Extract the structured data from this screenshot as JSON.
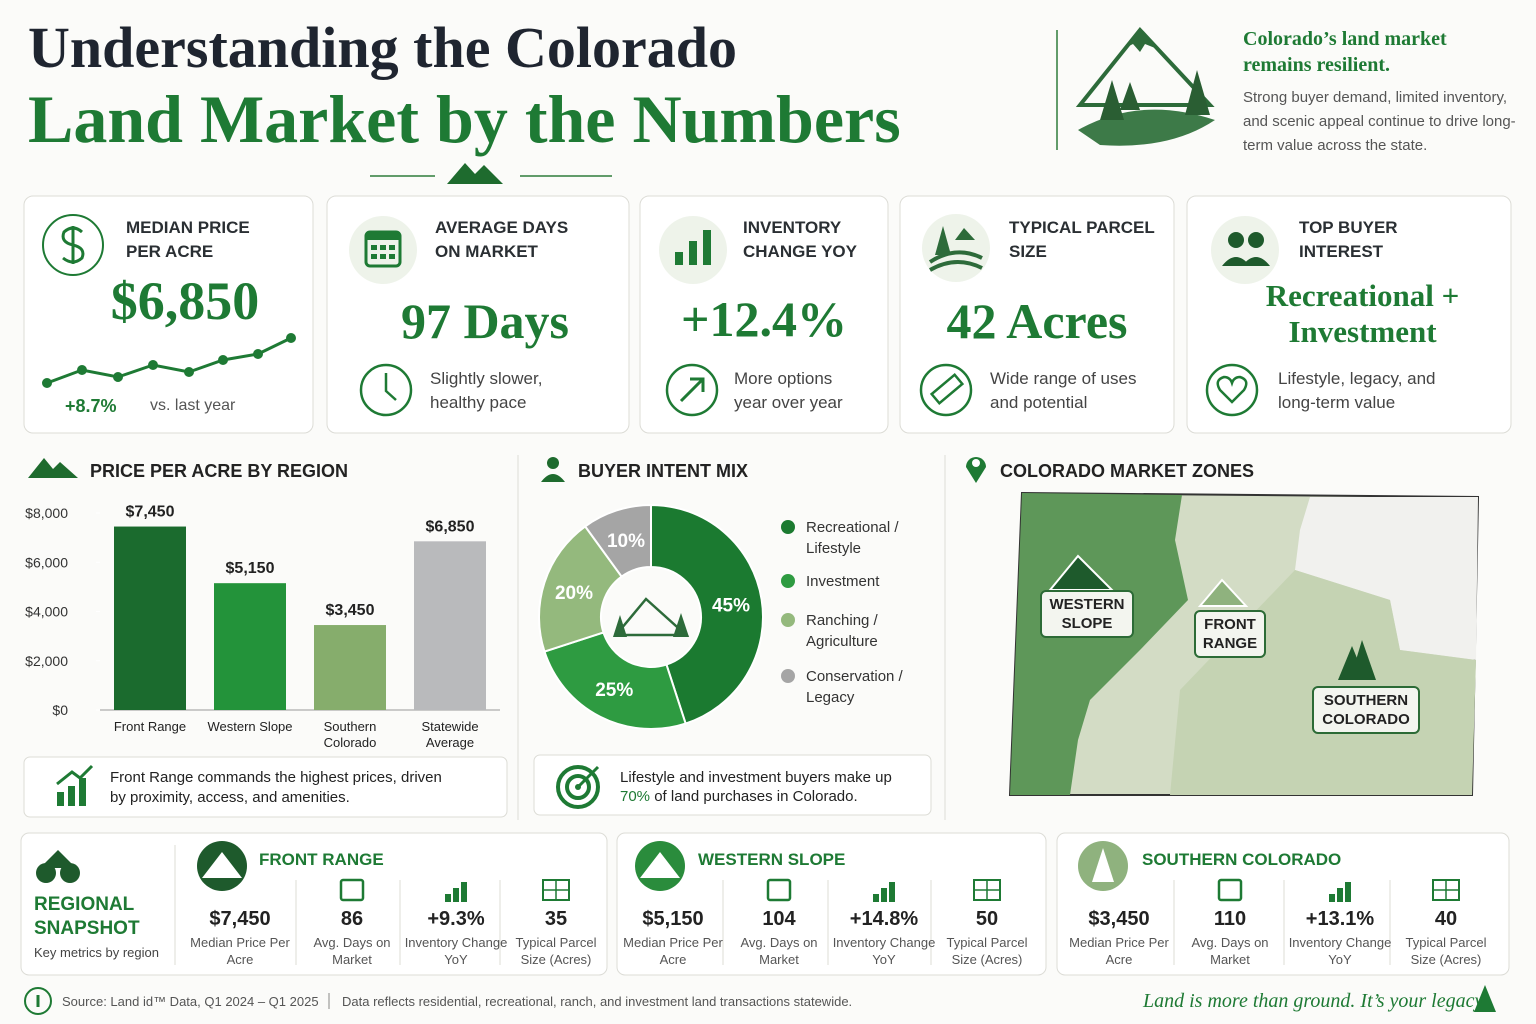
{
  "header": {
    "title_line1": "Understanding the Colorado",
    "title_line2": "Land Market by the Numbers",
    "tagline": "Colorado’s land market remains resilient.",
    "description": "Strong buyer demand, limited inventory, and scenic appeal continue to drive long-term value across the state."
  },
  "kpis": [
    {
      "label": "MEDIAN PRICE PER ACRE",
      "value": "$6,850",
      "change": "+8.7%",
      "note": "vs. last year"
    },
    {
      "label": "AVERAGE DAYS ON MARKET",
      "value": "97 Days",
      "note": "Slightly slower, healthy pace"
    },
    {
      "label": "INVENTORY CHANGE YOY",
      "value": "+12.4%",
      "note": "More options year over year"
    },
    {
      "label": "TYPICAL PARCEL SIZE",
      "value": "42 Acres",
      "note": "Wide range of uses and potential"
    },
    {
      "label": "TOP BUYER INTEREST",
      "value": "Recreational + Investment",
      "note": "Lifestyle, legacy, and long-term value"
    }
  ],
  "chart_data": [
    {
      "type": "bar",
      "title": "PRICE PER ACRE BY REGION",
      "categories": [
        "Front Range",
        "Western Slope",
        "Southern Colorado",
        "Statewide Average"
      ],
      "values": [
        7450,
        5150,
        3450,
        6850
      ],
      "value_labels": [
        "$7,450",
        "$5,150",
        "$3,450",
        "$6,850"
      ],
      "colors": [
        "#1b6b2e",
        "#23933a",
        "#86ad6c",
        "#b9babc"
      ],
      "ylim": [
        0,
        8000
      ],
      "yticks": [
        {
          "value": 0,
          "label": "$0"
        },
        {
          "value": 2000,
          "label": "$2,000"
        },
        {
          "value": 4000,
          "label": "$4,000"
        },
        {
          "value": 6000,
          "label": "$6,000"
        },
        {
          "value": 8000,
          "label": "$8,000"
        }
      ],
      "note": "Front Range commands the highest prices, driven by proximity, access, and amenities."
    },
    {
      "type": "pie",
      "title": "BUYER INTENT MIX",
      "categories": [
        "Recreational / Lifestyle",
        "Investment",
        "Ranching / Agriculture",
        "Conservation / Legacy"
      ],
      "values": [
        45,
        25,
        20,
        10
      ],
      "value_labels": [
        "45%",
        "25%",
        "20%",
        "10%"
      ],
      "colors": [
        "#1b7a30",
        "#2e9b41",
        "#94b97d",
        "#a5a5a5"
      ],
      "note_start": "Lifestyle and investment buyers make up",
      "note_highlight": "70%",
      "note_end": "of land purchases in Colorado."
    }
  ],
  "map": {
    "title": "COLORADO MARKET ZONES",
    "zones": [
      "WESTERN SLOPE",
      "FRONT RANGE",
      "SOUTHERN COLORADO"
    ]
  },
  "snapshot": {
    "title": "REGIONAL SNAPSHOT",
    "subtitle": "Key metrics by region",
    "regions": [
      {
        "name": "FRONT RANGE",
        "metrics": [
          {
            "value": "$7,450",
            "label": "Median Price Per Acre"
          },
          {
            "value": "86",
            "label": "Avg. Days on Market"
          },
          {
            "value": "+9.3%",
            "label": "Inventory Change YoY"
          },
          {
            "value": "35",
            "label": "Typical Parcel Size (Acres)"
          }
        ]
      },
      {
        "name": "WESTERN SLOPE",
        "metrics": [
          {
            "value": "$5,150",
            "label": "Median Price Per Acre"
          },
          {
            "value": "104",
            "label": "Avg. Days on Market"
          },
          {
            "value": "+14.8%",
            "label": "Inventory Change YoY"
          },
          {
            "value": "50",
            "label": "Typical Parcel Size (Acres)"
          }
        ]
      },
      {
        "name": "SOUTHERN COLORADO",
        "metrics": [
          {
            "value": "$3,450",
            "label": "Median Price Per Acre"
          },
          {
            "value": "110",
            "label": "Avg. Days on Market"
          },
          {
            "value": "+13.1%",
            "label": "Inventory Change YoY"
          },
          {
            "value": "40",
            "label": "Typical Parcel Size (Acres)"
          }
        ]
      }
    ]
  },
  "footer": {
    "source": "Source:  Land id™ Data, Q1 2024 – Q1 2025",
    "note": "Data reflects residential, recreational, ranch, and investment land transactions statewide.",
    "slogan": "Land is more than ground. It’s your legacy."
  }
}
